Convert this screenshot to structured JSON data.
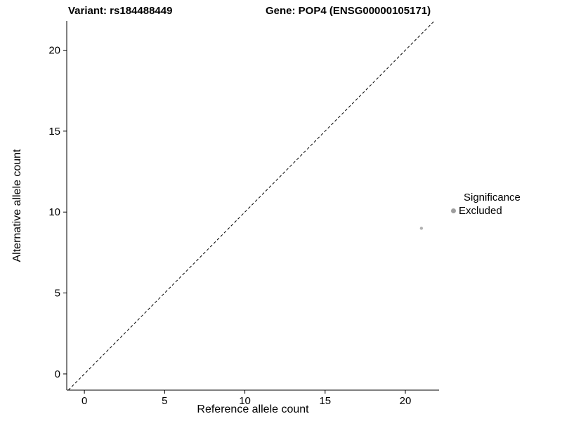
{
  "chart_data": {
    "type": "scatter",
    "title_left": "Variant: rs184488449",
    "title_right": "Gene: POP4 (ENSG00000105171)",
    "xlabel": "Reference allele count",
    "ylabel": "Alternative allele count",
    "xlim": [
      -1.1,
      22.1
    ],
    "ylim": [
      -1.0,
      21.8
    ],
    "xticks": [
      0,
      5,
      10,
      15,
      20
    ],
    "yticks": [
      0,
      5,
      10,
      15,
      20
    ],
    "grid": false,
    "background": "#ffffff",
    "text_color": "#000000",
    "axis_color": "#000000",
    "identity_line": {
      "style": "dashed",
      "color": "#000000",
      "equation": "y = x"
    },
    "series": [
      {
        "name": "Excluded",
        "color": "#b0b0b0",
        "point_radius": 2.2,
        "points": [
          {
            "x": 21,
            "y": 9
          }
        ]
      }
    ],
    "legend": {
      "title": "Significance",
      "position": "right",
      "entries": [
        {
          "label": "Excluded",
          "color": "#9e9e9e"
        }
      ]
    }
  }
}
